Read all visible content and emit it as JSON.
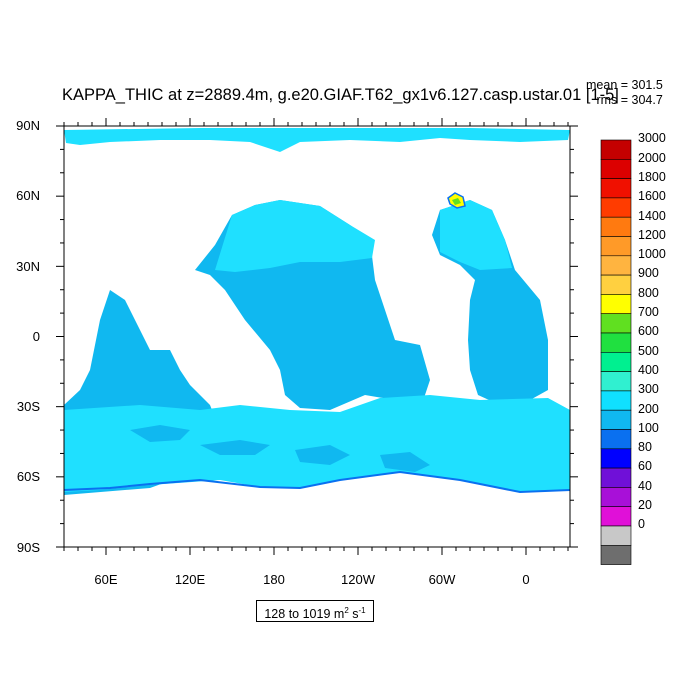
{
  "title": "KAPPA_THIC at z=2889.4m, g.e20.GIAF.T62_gx1v6.127.casp.ustar.01 [1-5]",
  "stats": {
    "mean": "mean = 301.5",
    "rms": "rms = 304.7"
  },
  "lat_ticks": [
    "90N",
    "60N",
    "30N",
    "0",
    "30S",
    "60S",
    "90S"
  ],
  "lon_ticks": [
    "60E",
    "120E",
    "180",
    "120W",
    "60W",
    "0"
  ],
  "units_box": {
    "range": "128 to 1019",
    "unit": "m",
    "exp": "2",
    "unit2": "s",
    "exp2": "-1"
  },
  "legend": {
    "labels": [
      "3000",
      "2000",
      "1800",
      "1600",
      "1400",
      "1200",
      "1000",
      "900",
      "800",
      "700",
      "600",
      "500",
      "400",
      "300",
      "200",
      "100",
      "80",
      "60",
      "40",
      "20",
      "0"
    ],
    "colors": [
      "#c40000",
      "#dc0000",
      "#f01000",
      "#ff3c00",
      "#ff7a10",
      "#ff9a28",
      "#ffb440",
      "#ffd040",
      "#ffff00",
      "#60e020",
      "#20e040",
      "#00f090",
      "#30f0d0",
      "#10e0ff",
      "#10b8f0",
      "#0a70f0",
      "#0000ff",
      "#7010d8",
      "#a810d8",
      "#e010d8",
      "#c8c8c8",
      "#6e6e6e"
    ]
  },
  "map": {
    "colors": {
      "land": "#ffffff",
      "ocean_light": "#1fe0ff",
      "ocean_mid": "#10b8f0",
      "ocean_deep": "#0a70f0",
      "accent_yellow": "#ffff00",
      "accent_green": "#60e020"
    }
  }
}
